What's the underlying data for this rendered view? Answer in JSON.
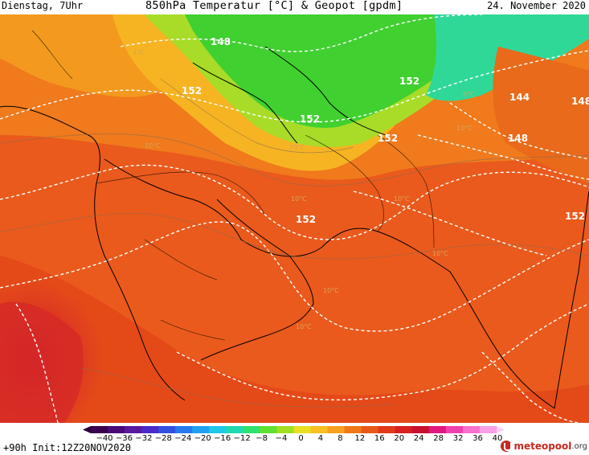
{
  "header": {
    "left": "Dienstag, 7Uhr",
    "title": "850hPa Temperatur [°C] & Geopot [gpdm]",
    "right": "24. November 2020"
  },
  "footer": {
    "run_info": "+90h Init:12Z20NOV2020",
    "logo_name": "meteopool",
    "logo_tld": ".org"
  },
  "map": {
    "geopot_labels": [
      "148",
      "152",
      "152",
      "152",
      "152",
      "152",
      "144",
      "148",
      "148",
      "152"
    ],
    "temp_labels": [
      "4°C",
      "10°C",
      "10°C",
      "10°C",
      "10°C",
      "10°C",
      "10°C",
      "10°C",
      "0°C",
      "10°C"
    ]
  },
  "colorbar": {
    "ticks": [
      "−40",
      "−36",
      "−32",
      "−28",
      "−24",
      "−20",
      "−16",
      "−12",
      "−8",
      "−4",
      "0",
      "4",
      "8",
      "12",
      "16",
      "20",
      "24",
      "28",
      "32",
      "36",
      "40"
    ],
    "colors": [
      "#3a0050",
      "#4a0a78",
      "#5a1aa0",
      "#4a2ac8",
      "#3050e0",
      "#2878f0",
      "#20a0f0",
      "#20c8e8",
      "#20d8b0",
      "#30e070",
      "#60e030",
      "#a0e020",
      "#e8e020",
      "#f8c020",
      "#f8a020",
      "#f07818",
      "#e85818",
      "#e03818",
      "#d82020",
      "#c81030",
      "#e01880",
      "#f040b0",
      "#f870d0",
      "#f8a0e8"
    ]
  }
}
